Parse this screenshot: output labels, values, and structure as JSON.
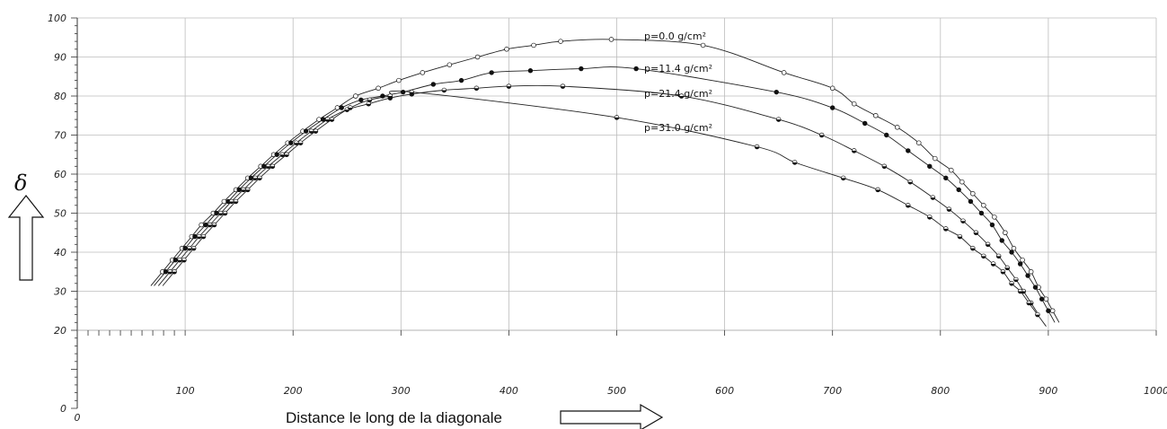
{
  "chart_data": {
    "type": "line",
    "xlabel": "Distance le long de la diagonale",
    "ylabel": "δ",
    "xlim": [
      0,
      1000
    ],
    "ylim": [
      0,
      100
    ],
    "x_ticks": [
      0,
      100,
      200,
      300,
      400,
      500,
      600,
      700,
      800,
      900,
      1000
    ],
    "y_ticks": [
      0,
      20,
      30,
      40,
      50,
      60,
      70,
      80,
      90,
      100
    ],
    "grid": true,
    "series": [
      {
        "name": "p=0.0 g/cm²",
        "marker": "open",
        "points": [
          [
            79,
            35
          ],
          [
            88,
            38
          ],
          [
            97,
            41
          ],
          [
            106,
            44
          ],
          [
            115,
            47
          ],
          [
            126,
            50
          ],
          [
            136,
            53
          ],
          [
            147,
            56
          ],
          [
            158,
            59
          ],
          [
            170,
            62
          ],
          [
            182,
            65
          ],
          [
            195,
            68
          ],
          [
            209,
            71
          ],
          [
            224,
            74
          ],
          [
            241,
            77
          ],
          [
            258,
            80
          ],
          [
            279,
            82
          ],
          [
            298,
            84
          ],
          [
            320,
            86
          ],
          [
            345,
            88
          ],
          [
            371,
            90
          ],
          [
            398,
            92
          ],
          [
            423,
            93
          ],
          [
            448,
            94
          ],
          [
            495,
            94.5
          ],
          [
            580,
            93
          ],
          [
            655,
            86
          ],
          [
            700,
            82
          ],
          [
            720,
            78
          ],
          [
            740,
            75
          ],
          [
            760,
            72
          ],
          [
            780,
            68
          ],
          [
            795,
            64
          ],
          [
            810,
            61
          ],
          [
            820,
            58
          ],
          [
            830,
            55
          ],
          [
            840,
            52
          ],
          [
            850,
            49
          ],
          [
            860,
            45
          ],
          [
            868,
            41
          ],
          [
            876,
            38
          ],
          [
            884,
            35
          ],
          [
            891,
            31
          ],
          [
            898,
            28
          ],
          [
            904,
            25
          ]
        ]
      },
      {
        "name": "p=11.4 g/cm²",
        "marker": "filled",
        "points": [
          [
            82,
            35
          ],
          [
            91,
            38
          ],
          [
            100,
            41
          ],
          [
            109,
            44
          ],
          [
            119,
            47
          ],
          [
            129,
            50
          ],
          [
            140,
            53
          ],
          [
            150,
            56
          ],
          [
            161,
            59
          ],
          [
            173,
            62
          ],
          [
            185,
            65
          ],
          [
            198,
            68
          ],
          [
            212,
            71
          ],
          [
            228,
            74
          ],
          [
            245,
            77
          ],
          [
            263,
            79
          ],
          [
            283,
            80
          ],
          [
            302,
            81
          ],
          [
            330,
            83
          ],
          [
            356,
            84
          ],
          [
            384,
            86
          ],
          [
            420,
            86.5
          ],
          [
            467,
            87
          ],
          [
            518,
            87
          ],
          [
            648,
            81
          ],
          [
            700,
            77
          ],
          [
            730,
            73
          ],
          [
            750,
            70
          ],
          [
            770,
            66
          ],
          [
            790,
            62
          ],
          [
            805,
            59
          ],
          [
            817,
            56
          ],
          [
            828,
            53
          ],
          [
            838,
            50
          ],
          [
            848,
            47
          ],
          [
            857,
            43
          ],
          [
            866,
            40
          ],
          [
            874,
            37
          ],
          [
            881,
            34
          ],
          [
            888,
            31
          ],
          [
            894,
            28
          ],
          [
            900,
            25
          ]
        ]
      },
      {
        "name": "p=21.4 g/cm²",
        "marker": "half",
        "points": [
          [
            86,
            35
          ],
          [
            95,
            38
          ],
          [
            104,
            41
          ],
          [
            113,
            44
          ],
          [
            123,
            47
          ],
          [
            133,
            50
          ],
          [
            143,
            53
          ],
          [
            154,
            56
          ],
          [
            165,
            59
          ],
          [
            177,
            62
          ],
          [
            190,
            65
          ],
          [
            203,
            68
          ],
          [
            217,
            71
          ],
          [
            232,
            74
          ],
          [
            250,
            76.5
          ],
          [
            270,
            78
          ],
          [
            290,
            79.5
          ],
          [
            310,
            80.5
          ],
          [
            340,
            81.5
          ],
          [
            370,
            82
          ],
          [
            400,
            82.5
          ],
          [
            450,
            82.5
          ],
          [
            560,
            80
          ],
          [
            650,
            74
          ],
          [
            690,
            70
          ],
          [
            720,
            66
          ],
          [
            748,
            62
          ],
          [
            772,
            58
          ],
          [
            793,
            54
          ],
          [
            808,
            51
          ],
          [
            821,
            48
          ],
          [
            833,
            45
          ],
          [
            844,
            42
          ],
          [
            854,
            39
          ],
          [
            862,
            36
          ],
          [
            870,
            33
          ],
          [
            877,
            30
          ],
          [
            884,
            27
          ]
        ]
      },
      {
        "name": "p=31.0 g/cm²",
        "marker": "half",
        "points": [
          [
            90,
            35
          ],
          [
            99,
            38
          ],
          [
            108,
            41
          ],
          [
            117,
            44
          ],
          [
            127,
            47
          ],
          [
            137,
            50
          ],
          [
            147,
            53
          ],
          [
            158,
            56
          ],
          [
            169,
            59
          ],
          [
            181,
            62
          ],
          [
            194,
            65
          ],
          [
            207,
            68
          ],
          [
            221,
            71
          ],
          [
            236,
            74
          ],
          [
            253,
            77
          ],
          [
            271,
            79
          ],
          [
            290,
            80
          ],
          [
            310,
            81
          ],
          [
            500,
            74.5
          ],
          [
            630,
            67
          ],
          [
            665,
            63
          ],
          [
            710,
            59
          ],
          [
            742,
            56
          ],
          [
            770,
            52
          ],
          [
            790,
            49
          ],
          [
            805,
            46
          ],
          [
            818,
            44
          ],
          [
            830,
            41
          ],
          [
            840,
            39
          ],
          [
            849,
            37
          ],
          [
            858,
            35
          ],
          [
            866,
            32
          ],
          [
            874,
            30
          ],
          [
            882,
            27
          ],
          [
            890,
            24
          ]
        ]
      }
    ]
  }
}
